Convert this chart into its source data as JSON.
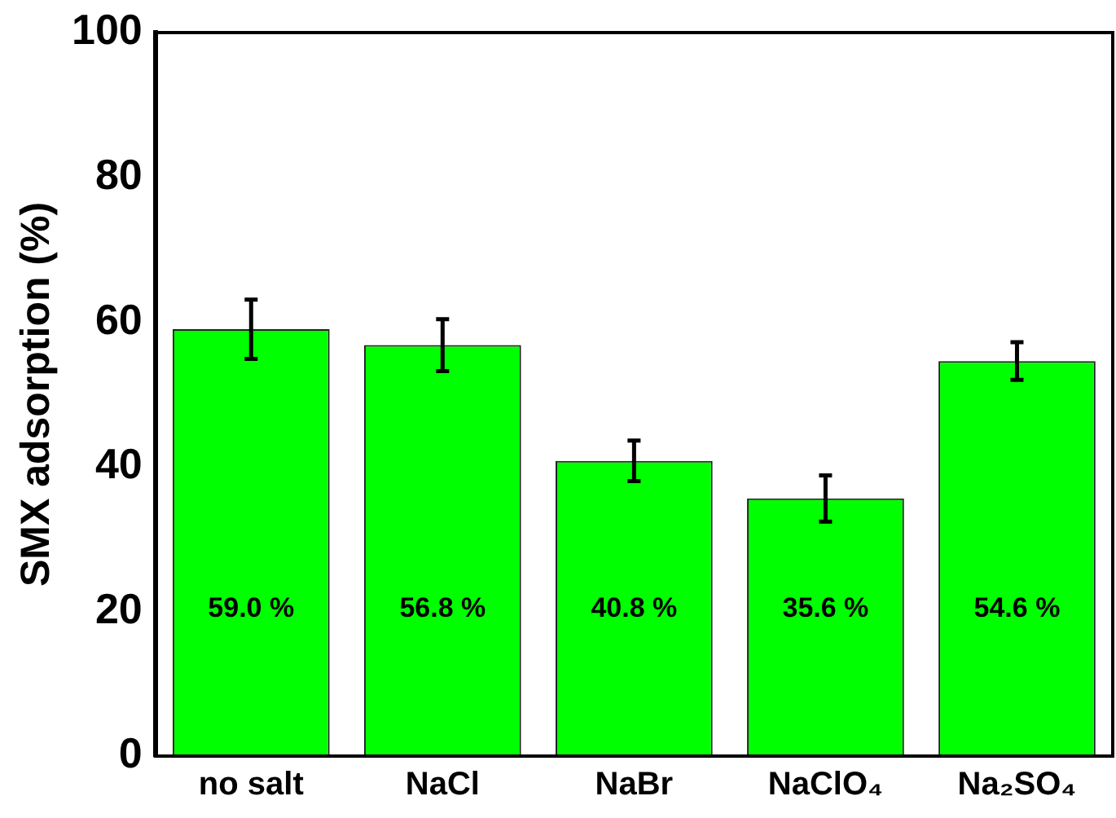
{
  "chart_data": {
    "type": "bar",
    "ylabel": "SMX adsorption (%)",
    "categories": [
      "no salt",
      "NaCl",
      "NaBr",
      "NaClO₄",
      "Na₂SO₄"
    ],
    "values": [
      59.0,
      56.8,
      40.8,
      35.6,
      54.6
    ],
    "errors": [
      4.1,
      3.6,
      2.8,
      3.2,
      2.6
    ],
    "value_labels": [
      "59.0 %",
      "56.8 %",
      "40.8 %",
      "35.6 %",
      "54.6 %"
    ],
    "color": "#00ff00",
    "ylim": [
      0,
      100
    ],
    "yticks": [
      0,
      20,
      40,
      60,
      80,
      100
    ],
    "grid": false,
    "legend": false
  }
}
